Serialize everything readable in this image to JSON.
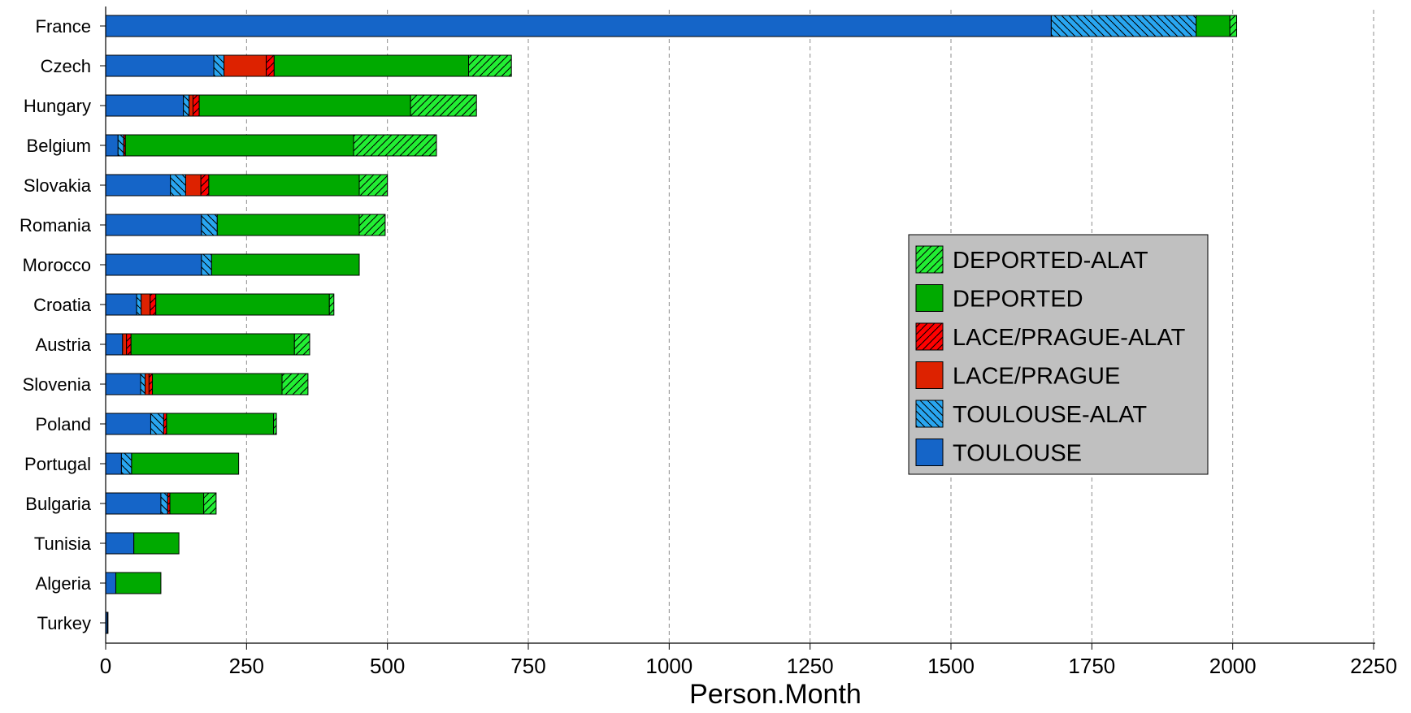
{
  "chart_data": {
    "type": "bar",
    "orientation": "horizontal",
    "stacked": true,
    "xlabel": "Person.Month",
    "ylabel": "",
    "title": "",
    "xlim": [
      0,
      2250
    ],
    "xticks": [
      0,
      250,
      500,
      750,
      1000,
      1250,
      1500,
      1750,
      2000,
      2250
    ],
    "grid": "vertical-dashed",
    "legend_position": "right",
    "categories": [
      "France",
      "Czech",
      "Hungary",
      "Belgium",
      "Slovakia",
      "Romania",
      "Morocco",
      "Croatia",
      "Austria",
      "Slovenia",
      "Poland",
      "Portugal",
      "Bulgaria",
      "Tunisia",
      "Algeria",
      "Turkey"
    ],
    "series": [
      {
        "name": "TOULOUSE",
        "color": "#1565c8",
        "pattern": "solid",
        "values": [
          1678,
          192,
          138,
          22,
          115,
          170,
          170,
          55,
          30,
          62,
          80,
          28,
          98,
          50,
          18,
          3
        ]
      },
      {
        "name": "TOULOUSE-ALAT",
        "color": "#29a6f0",
        "pattern": "hatch-back",
        "values": [
          257,
          18,
          10,
          10,
          27,
          28,
          18,
          8,
          0,
          8,
          23,
          18,
          12,
          0,
          0,
          1
        ]
      },
      {
        "name": "LACE/PRAGUE",
        "color": "#dd2200",
        "pattern": "solid",
        "values": [
          0,
          75,
          7,
          0,
          27,
          0,
          0,
          16,
          7,
          7,
          0,
          0,
          0,
          0,
          0,
          0
        ]
      },
      {
        "name": "LACE/PRAGUE-ALAT",
        "color": "#ff0000",
        "pattern": "hatch-forward",
        "values": [
          0,
          14,
          11,
          3,
          14,
          0,
          0,
          10,
          8,
          6,
          5,
          0,
          4,
          0,
          0,
          0
        ]
      },
      {
        "name": "DEPORTED",
        "color": "#00aa00",
        "pattern": "solid",
        "values": [
          60,
          345,
          375,
          405,
          267,
          252,
          262,
          308,
          290,
          230,
          190,
          190,
          60,
          80,
          80,
          0
        ]
      },
      {
        "name": "DEPORTED-ALAT",
        "color": "#22ee33",
        "pattern": "hatch-forward",
        "values": [
          12,
          76,
          117,
          147,
          50,
          46,
          0,
          8,
          27,
          46,
          5,
          0,
          22,
          0,
          0,
          0
        ]
      }
    ],
    "legend_order": [
      "DEPORTED-ALAT",
      "DEPORTED",
      "LACE/PRAGUE-ALAT",
      "LACE/PRAGUE",
      "TOULOUSE-ALAT",
      "TOULOUSE"
    ]
  }
}
